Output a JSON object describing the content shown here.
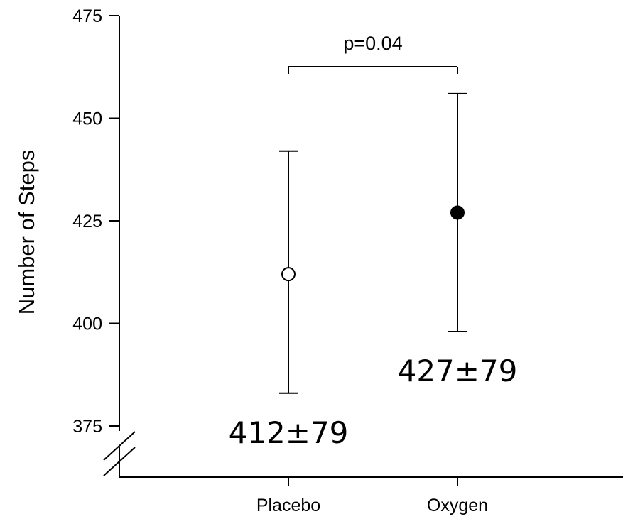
{
  "chart_data": {
    "type": "scatter",
    "ylabel": "Number of Steps",
    "xlabel": "",
    "ylim": [
      375,
      475
    ],
    "yticks": [
      375,
      400,
      425,
      450,
      475
    ],
    "categories": [
      "Placebo",
      "Oxygen"
    ],
    "axis_break": true,
    "points": [
      {
        "category": "Placebo",
        "mean": 412,
        "err_low": 383,
        "err_high": 442,
        "marker": "open-circle",
        "label": "412±79"
      },
      {
        "category": "Oxygen",
        "mean": 427,
        "err_low": 398,
        "err_high": 456,
        "marker": "filled-circle",
        "label": "427±79"
      }
    ],
    "significance": {
      "from": "Placebo",
      "to": "Oxygen",
      "label": "p=0.04"
    },
    "colors": {
      "axis": "#000000",
      "open_marker_fill": "#ffffff",
      "filled_marker_fill": "#000000"
    }
  }
}
